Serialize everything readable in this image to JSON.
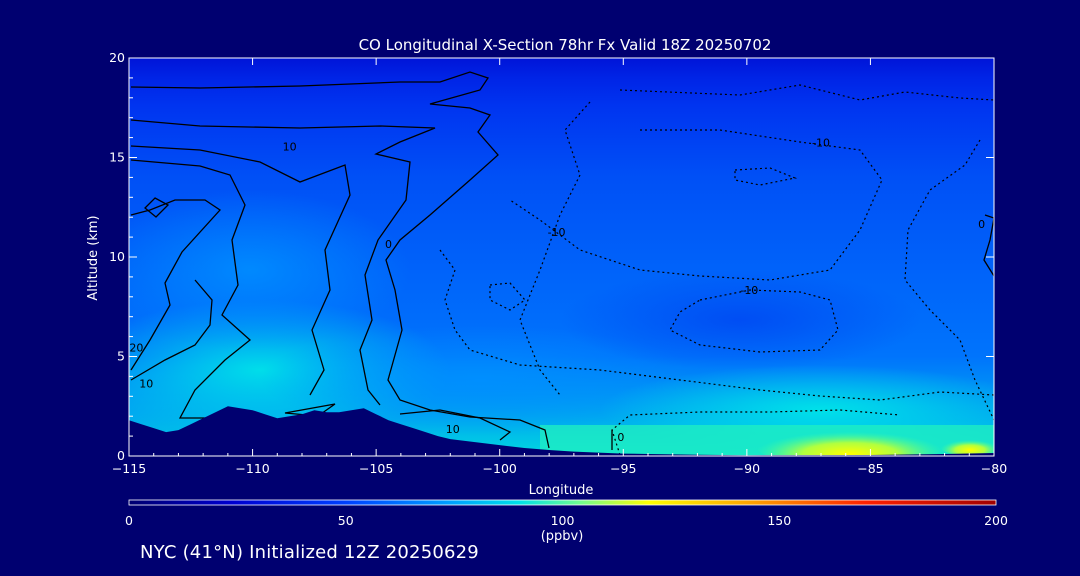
{
  "chart_data": {
    "type": "heatmap",
    "title": "CO Longitudinal X-Section 78hr  Fx Valid 18Z 20250702",
    "xlabel": "Longitude",
    "ylabel": "Altitude (km)",
    "xlim": [
      -115,
      -80
    ],
    "ylim": [
      0,
      20
    ],
    "x_ticks": [
      -115,
      -110,
      -105,
      -100,
      -95,
      -90,
      -85,
      -80
    ],
    "x_tick_labels": [
      "−115",
      "−110",
      "−105",
      "−100",
      "−95",
      "−90",
      "−85",
      "−80"
    ],
    "y_ticks": [
      0,
      5,
      10,
      15,
      20
    ],
    "colorbar": {
      "min": 0,
      "max": 200,
      "ticks": [
        0,
        50,
        100,
        150,
        200
      ],
      "unit": "(ppbv)",
      "colors": [
        "#000070",
        "#0000c8",
        "#0040ff",
        "#00a0ff",
        "#00e8e8",
        "#80ff80",
        "#ffff00",
        "#ff8000",
        "#ff0000",
        "#a00000"
      ]
    },
    "contour_labels": [
      {
        "text": "10",
        "x": -108.5,
        "y": 15.5
      },
      {
        "text": "0",
        "x": -104.5,
        "y": 10.6
      },
      {
        "text": "20",
        "x": -114.7,
        "y": 5.4
      },
      {
        "text": "10",
        "x": -114.3,
        "y": 3.6
      },
      {
        "text": "10",
        "x": -101.9,
        "y": 1.3
      },
      {
        "text": "0",
        "x": -95.1,
        "y": 0.9
      },
      {
        "text": "-10",
        "x": -97.7,
        "y": 11.2
      },
      {
        "text": "-10",
        "x": -87.0,
        "y": 15.7
      },
      {
        "text": "-10",
        "x": -89.9,
        "y": 8.3
      },
      {
        "text": "0",
        "x": -80.5,
        "y": 11.6
      }
    ],
    "terrain": [
      [
        -115,
        1.8
      ],
      [
        -114.5,
        1.6
      ],
      [
        -114,
        1.4
      ],
      [
        -113.5,
        1.2
      ],
      [
        -113,
        1.3
      ],
      [
        -112.5,
        1.6
      ],
      [
        -112,
        1.9
      ],
      [
        -111.5,
        2.2
      ],
      [
        -111,
        2.5
      ],
      [
        -110.5,
        2.4
      ],
      [
        -110,
        2.3
      ],
      [
        -109.5,
        2.1
      ],
      [
        -109,
        1.9
      ],
      [
        -108.5,
        2.0
      ],
      [
        -108,
        2.1
      ],
      [
        -107.5,
        2.3
      ],
      [
        -107,
        2.2
      ],
      [
        -106.5,
        2.2
      ],
      [
        -106,
        2.3
      ],
      [
        -105.5,
        2.4
      ],
      [
        -105,
        2.1
      ],
      [
        -104.5,
        1.8
      ],
      [
        -104,
        1.6
      ],
      [
        -103.5,
        1.4
      ],
      [
        -103,
        1.2
      ],
      [
        -102.5,
        1.0
      ],
      [
        -102,
        0.85
      ],
      [
        -101,
        0.7
      ],
      [
        -100,
        0.55
      ],
      [
        -99,
        0.4
      ],
      [
        -98,
        0.3
      ],
      [
        -97,
        0.22
      ],
      [
        -96,
        0.17
      ],
      [
        -95,
        0.12
      ],
      [
        -94,
        0.1
      ],
      [
        -93,
        0.08
      ],
      [
        -92,
        0.06
      ],
      [
        -90,
        0.04
      ],
      [
        -85,
        0.05
      ],
      [
        -82,
        0.1
      ],
      [
        -80,
        0.15
      ]
    ]
  },
  "footer": "NYC (41°N) Initialized 12Z 20250629"
}
